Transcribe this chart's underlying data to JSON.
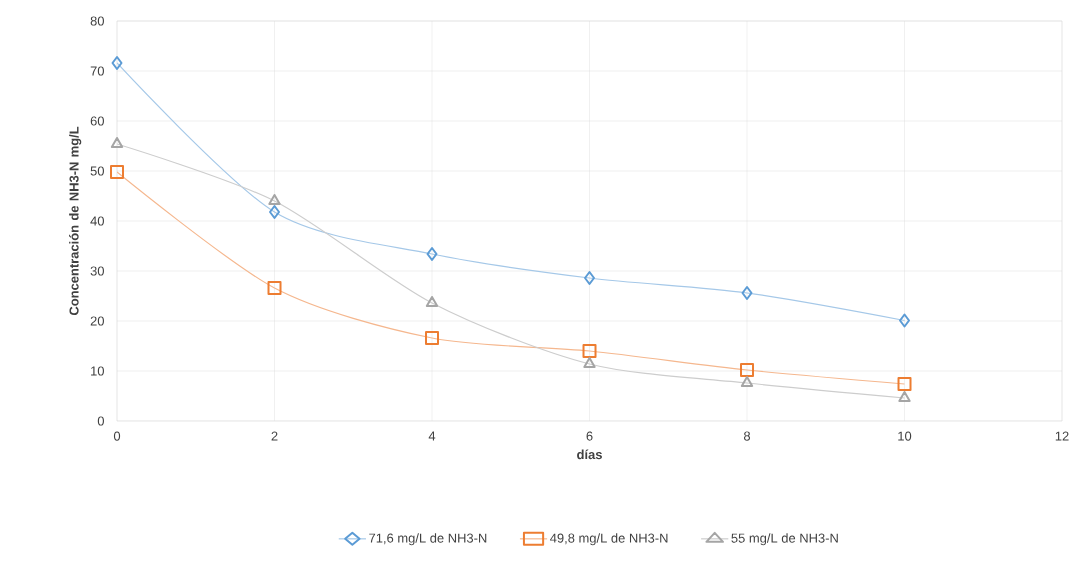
{
  "chart_data": {
    "type": "line",
    "xlabel": "días",
    "ylabel": "Concentración de NH3-N mg/L",
    "x": [
      0,
      2,
      4,
      6,
      8,
      10
    ],
    "series": [
      {
        "name": "71,6 mg/L de NH3-N",
        "color": "#5b9bd5",
        "marker": "diamond",
        "values": [
          71.6,
          41.8,
          33.4,
          28.6,
          25.6,
          20.1
        ]
      },
      {
        "name": "49,8 mg/L de NH3-N",
        "color": "#ed7d31",
        "marker": "square",
        "values": [
          49.8,
          26.6,
          16.6,
          14.0,
          10.2,
          7.4
        ]
      },
      {
        "name": "55 mg/L de NH3-N",
        "color": "#a5a5a5",
        "marker": "triangle",
        "values": [
          55.4,
          44.0,
          23.6,
          11.4,
          7.6,
          4.6
        ]
      }
    ],
    "xlim": [
      0,
      12
    ],
    "xticks": [
      0,
      2,
      4,
      6,
      8,
      10,
      12
    ],
    "ylim": [
      0,
      80
    ],
    "yticks": [
      0,
      10,
      20,
      30,
      40,
      50,
      60,
      70,
      80
    ],
    "grid": true,
    "legend": "bottom",
    "line_style": "solid"
  }
}
